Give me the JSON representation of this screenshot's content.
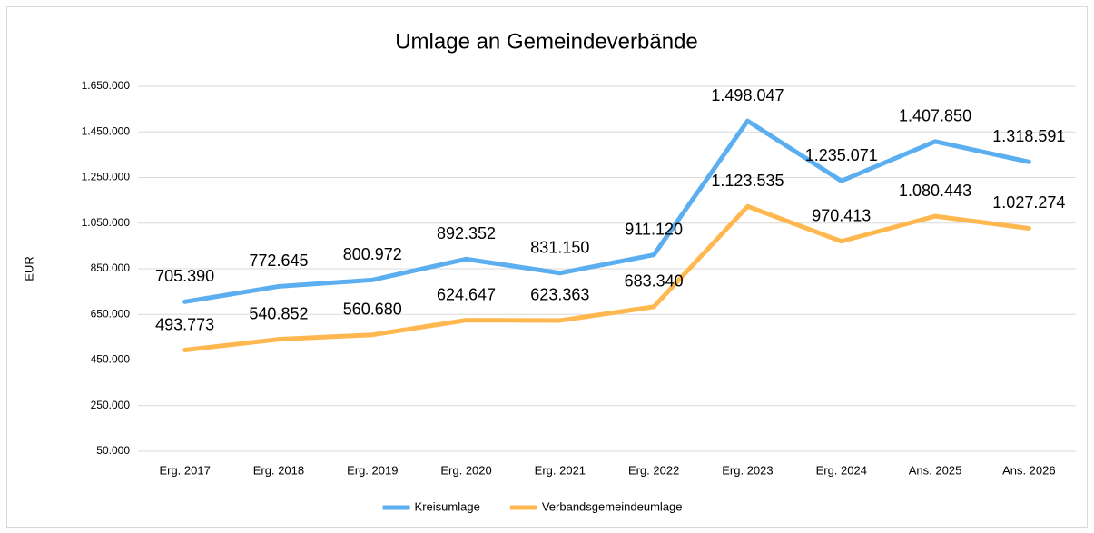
{
  "chart_data": {
    "type": "line",
    "title": "Umlage an Gemeindeverbände",
    "y_label": "EUR",
    "categories": [
      "Erg. 2017",
      "Erg. 2018",
      "Erg. 2019",
      "Erg. 2020",
      "Erg. 2021",
      "Erg. 2022",
      "Erg. 2023",
      "Erg. 2024",
      "Ans. 2025",
      "Ans. 2026"
    ],
    "series": [
      {
        "name": "Kreisumlage",
        "color": "#5BAEEF",
        "values": [
          705390,
          772645,
          800972,
          892352,
          831150,
          911120,
          1498047,
          1235071,
          1407850,
          1318591
        ],
        "value_labels": [
          "705.390",
          "772.645",
          "800.972",
          "892.352",
          "831.150",
          "911.120",
          "1.498.047",
          "1.235.071",
          "1.407.850",
          "1.318.591"
        ]
      },
      {
        "name": "Verbandsgemeindeumlage",
        "color": "#FFB84F",
        "values": [
          493773,
          540852,
          560680,
          624647,
          623363,
          683340,
          1123535,
          970413,
          1080443,
          1027274
        ],
        "value_labels": [
          "493.773",
          "540.852",
          "560.680",
          "624.647",
          "623.363",
          "683.340",
          "1.123.535",
          "970.413",
          "1.080.443",
          "1.027.274"
        ]
      }
    ],
    "ylim": [
      50000,
      1650000
    ],
    "yticks": [
      {
        "value": 50000,
        "label": "50.000"
      },
      {
        "value": 250000,
        "label": "250.000"
      },
      {
        "value": 450000,
        "label": "450.000"
      },
      {
        "value": 650000,
        "label": "650.000"
      },
      {
        "value": 850000,
        "label": "850.000"
      },
      {
        "value": 1050000,
        "label": "1.050.000"
      },
      {
        "value": 1250000,
        "label": "1.250.000"
      },
      {
        "value": 1450000,
        "label": "1.450.000"
      },
      {
        "value": 1650000,
        "label": "1.650.000"
      }
    ],
    "grid": true,
    "legend": "bottom"
  }
}
